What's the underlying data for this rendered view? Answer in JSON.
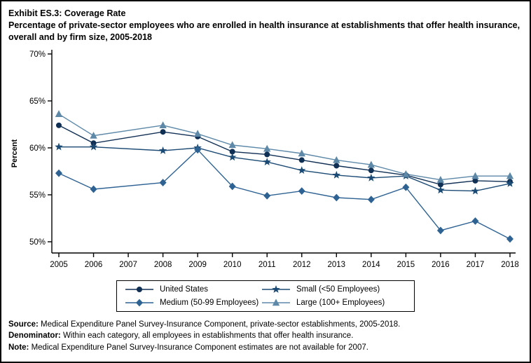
{
  "header": {
    "title_line1": "Exhibit ES.3: Coverage Rate",
    "title_line2": "Percentage of private-sector employees who are enrolled in health insurance at establishments that offer health insurance, overall and by firm size, 2005-2018"
  },
  "chart_data": {
    "type": "line",
    "ylabel": "Percent",
    "x": [
      2005,
      2006,
      2007,
      2008,
      2009,
      2010,
      2011,
      2012,
      2013,
      2014,
      2015,
      2016,
      2017,
      2018
    ],
    "yticks": [
      50,
      55,
      60,
      65,
      70
    ],
    "ylim": [
      50,
      70
    ],
    "ytick_suffix": "%",
    "grid": false,
    "legend_position": "bottom",
    "missing_year_note": "No estimates for 2007",
    "series": [
      {
        "name": "United States",
        "marker": "circle",
        "color": "#102f54",
        "values": [
          62.4,
          60.5,
          null,
          61.7,
          61.2,
          59.6,
          59.3,
          58.7,
          58.1,
          57.6,
          57.1,
          56.1,
          56.5,
          56.4
        ]
      },
      {
        "name": "Small (<50 Employees)",
        "marker": "star",
        "color": "#1b4a74",
        "values": [
          60.1,
          60.1,
          null,
          59.7,
          60.0,
          59.0,
          58.5,
          57.6,
          57.1,
          56.8,
          57.0,
          55.5,
          55.4,
          56.2
        ]
      },
      {
        "name": "Medium (50-99 Employees)",
        "marker": "diamond",
        "color": "#2d6293",
        "values": [
          57.3,
          55.6,
          null,
          56.3,
          59.8,
          55.9,
          54.9,
          55.4,
          54.7,
          54.5,
          55.8,
          51.2,
          52.2,
          50.3
        ]
      },
      {
        "name": "Large (100+ Employees)",
        "marker": "triangle",
        "color": "#5d88a8",
        "values": [
          63.6,
          61.3,
          null,
          62.4,
          61.5,
          60.3,
          59.9,
          59.4,
          58.7,
          58.2,
          57.2,
          56.6,
          57.0,
          57.0
        ]
      }
    ]
  },
  "footnotes": [
    {
      "prefix": "Source:",
      "text": " Medical Expenditure Panel Survey-Insurance Component, private-sector establishments, 2005-2018."
    },
    {
      "prefix": "Denominator:",
      "text": " Within each category, all employees in establishments that offer health insurance."
    },
    {
      "prefix": "Note:",
      "text": " Medical Expenditure Panel Survey-Insurance Component estimates are not available for 2007."
    }
  ]
}
